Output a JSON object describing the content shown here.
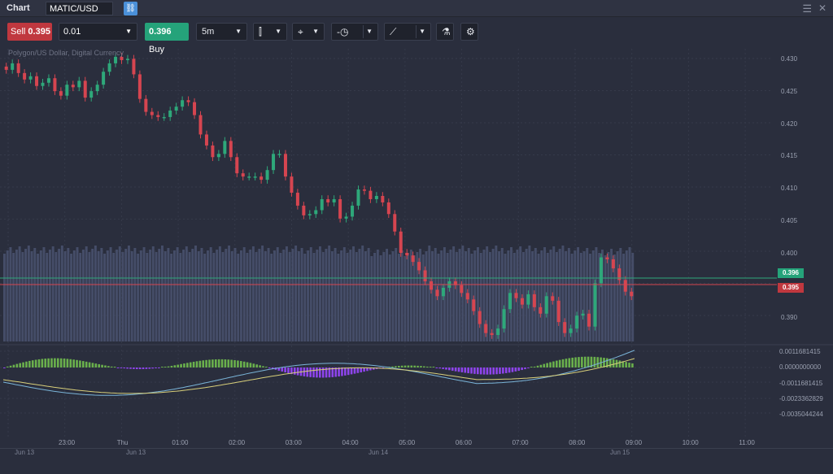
{
  "window": {
    "title": "Chart",
    "symbol": "MATIC/USD"
  },
  "toolbar": {
    "sell_label": "Sell",
    "sell_price": "0.395",
    "quantity": "0.01",
    "buy_price": "0.396",
    "buy_label": "Buy",
    "timeframe": "5m"
  },
  "chart": {
    "series_label": "Polygon/US Dollar, Digital Currency",
    "price_ticks": [
      "0.430",
      "0.425",
      "0.420",
      "0.415",
      "0.410",
      "0.405",
      "0.400",
      "0.395",
      "0.390"
    ],
    "ask_tag": "0.396",
    "bid_tag": "0.395",
    "osc_ticks": [
      "0.0011681415",
      "0.0000000000",
      "-0.0011681415",
      "-0.0023362829",
      "-0.0035044244"
    ],
    "time_ticks": [
      "23:00",
      "Thu",
      "01:00",
      "02:00",
      "03:00",
      "04:00",
      "05:00",
      "06:00",
      "07:00",
      "08:00",
      "09:00",
      "10:00",
      "11:00"
    ],
    "navigator_dates": [
      "Jun 13",
      "Jun 13",
      "Jun 14",
      "Jun 15"
    ],
    "colors": {
      "up": "#2ea87a",
      "down": "#d64550",
      "ask": "#2ea87a",
      "bid": "#d64550",
      "volume": "#4a5270",
      "osc_pos": "#6ab04c",
      "osc_neg": "#8e44ec"
    }
  },
  "chart_data": {
    "type": "candlestick",
    "symbol": "MATIC/USD",
    "ylim": [
      0.3875,
      0.4325
    ],
    "closes": [
      0.4295,
      0.4305,
      0.429,
      0.428,
      0.4285,
      0.427,
      0.4275,
      0.4282,
      0.4262,
      0.4255,
      0.4272,
      0.4268,
      0.4278,
      0.4252,
      0.4262,
      0.4272,
      0.4292,
      0.4305,
      0.4315,
      0.431,
      0.4312,
      0.4288,
      0.425,
      0.423,
      0.4225,
      0.4222,
      0.4222,
      0.4232,
      0.4238,
      0.4248,
      0.4245,
      0.4225,
      0.4195,
      0.4178,
      0.416,
      0.4165,
      0.4185,
      0.416,
      0.4135,
      0.413,
      0.413,
      0.413,
      0.4125,
      0.414,
      0.4165,
      0.4165,
      0.413,
      0.4105,
      0.4085,
      0.407,
      0.4072,
      0.4078,
      0.4095,
      0.409,
      0.4095,
      0.4065,
      0.4068,
      0.4085,
      0.411,
      0.4108,
      0.4095,
      0.41,
      0.409,
      0.4072,
      0.4045,
      0.4012,
      0.4008,
      0.3998,
      0.3985,
      0.3968,
      0.3955,
      0.3945,
      0.3958,
      0.3968,
      0.3962,
      0.395,
      0.394,
      0.3922,
      0.3902,
      0.3888,
      0.3885,
      0.3895,
      0.3925,
      0.395,
      0.3942,
      0.3932,
      0.3948,
      0.3928,
      0.3918,
      0.3945,
      0.3938,
      0.3905,
      0.3888,
      0.3895,
      0.3915,
      0.3918,
      0.3898,
      0.3965,
      0.4005,
      0.4002,
      0.3988,
      0.397,
      0.3952,
      0.3945
    ]
  }
}
